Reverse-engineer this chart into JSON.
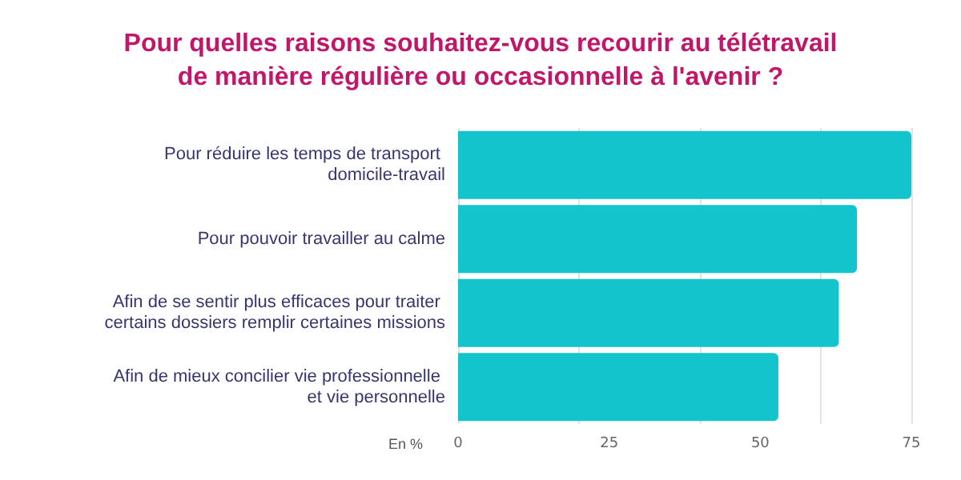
{
  "chart_data": {
    "type": "bar",
    "orientation": "horizontal",
    "title": "Pour quelles raisons souhaitez-vous recourir au télétravail\nde manière régulière ou occasionnelle à l'avenir ?",
    "xlabel": "En %",
    "categories": [
      "Pour réduire les temps de transport domicile-travail",
      "Pour pouvoir travailler au calme",
      "Afin de se sentir plus efficaces pour traiter certains dossiers remplir certaines missions",
      "Afin de mieux concilier vie professionnelle et vie personnelle"
    ],
    "values": [
      75,
      66,
      63,
      53
    ],
    "color": "#13c4cc",
    "xlim": [
      0,
      75
    ],
    "xticks": [
      0,
      25,
      50,
      75
    ],
    "grid": "x"
  }
}
